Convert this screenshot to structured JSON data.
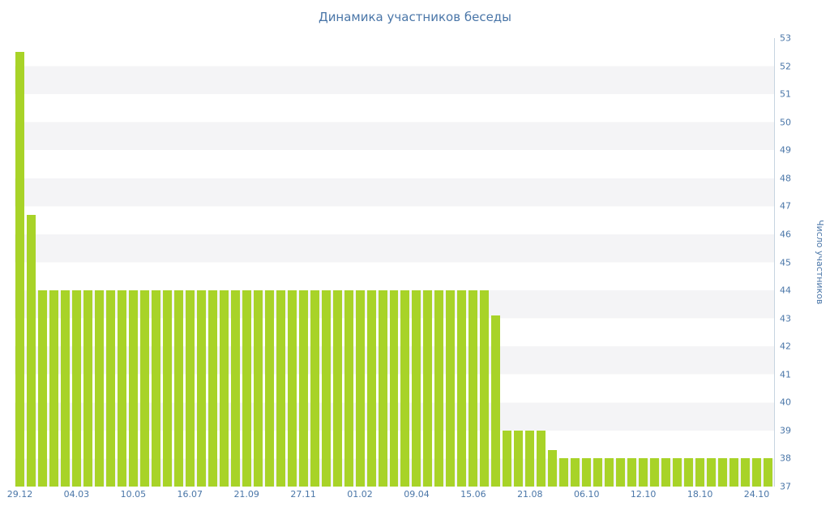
{
  "title": "Динамика участников беседы",
  "colors": {
    "bar": "#a8d328",
    "title_text": "#4a76a8",
    "axis_text": "#4a76a8",
    "stripe": "#f4f4f6",
    "axis_line": "#c7d4e0",
    "background": "#ffffff"
  },
  "chart_data": {
    "type": "bar",
    "title": "Динамика участников беседы",
    "xlabel": "",
    "ylabel": "Число участников",
    "ylim": [
      37,
      53
    ],
    "grid": "horizontal zebra stripes, 1-unit bands",
    "legend": "none",
    "y_ticks": [
      37,
      38,
      39,
      40,
      41,
      42,
      43,
      44,
      45,
      46,
      47,
      48,
      49,
      50,
      51,
      52,
      53
    ],
    "x_tick_labels": [
      "29.12",
      "04.03",
      "10.05",
      "16.07",
      "21.09",
      "27.11",
      "01.02",
      "09.04",
      "15.06",
      "21.08",
      "06.10",
      "12.10",
      "18.10",
      "24.10"
    ],
    "x_tick_every": 5,
    "values": [
      52.5,
      46.7,
      44,
      44,
      44,
      44,
      44,
      44,
      44,
      44,
      44,
      44,
      44,
      44,
      44,
      44,
      44,
      44,
      44,
      44,
      44,
      44,
      44,
      44,
      44,
      44,
      44,
      44,
      44,
      44,
      44,
      44,
      44,
      44,
      44,
      44,
      44,
      44,
      44,
      44,
      44,
      44,
      43.1,
      39,
      39,
      39,
      39,
      38.3,
      38,
      38,
      38,
      38,
      38,
      38,
      38,
      38,
      38,
      38,
      38,
      38,
      38,
      38,
      38,
      38,
      38,
      38,
      38
    ]
  }
}
